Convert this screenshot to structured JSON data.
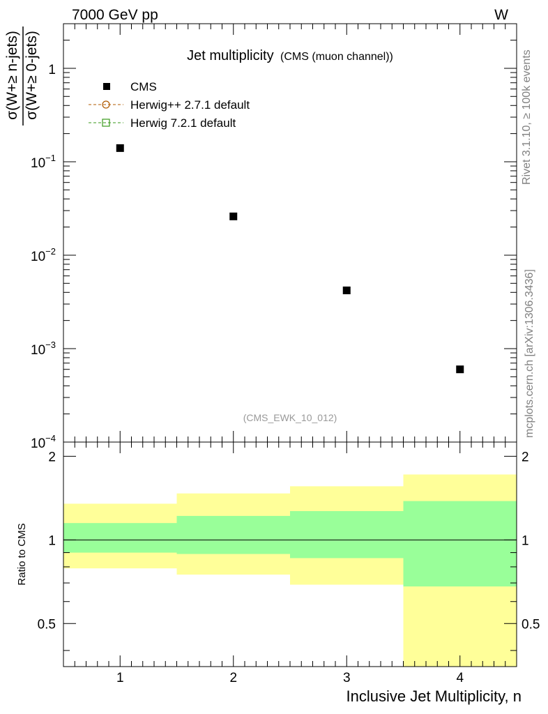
{
  "header": {
    "left": "7000 GeV pp",
    "right": "W"
  },
  "title": {
    "main": "Jet multiplicity",
    "sub": "(CMS (muon channel))"
  },
  "analysis_id": "(CMS_EWK_10_012)",
  "side_labels": {
    "rivet": "Rivet 3.1.10, ≥ 100k events",
    "mcplots": "mcplots.cern.ch [arXiv:1306.3436]"
  },
  "main_ylabel": {
    "numerator": "σ(W+≥ n-jets)",
    "denominator": "σ(W+≥ 0-jets)"
  },
  "legend": {
    "cms": "CMS",
    "herwigpp": "Herwig++ 2.7.1 default",
    "herwig7": "Herwig 7.2.1 default"
  },
  "colors": {
    "herwigpp": "#b05a00",
    "herwig7": "#3a9a1a",
    "band_stat": "#99ff99",
    "band_total": "#ffff99",
    "side_text": "#808080"
  },
  "chart_data": [
    {
      "type": "scatter",
      "panel": "main",
      "scale": "log",
      "ylim": [
        0.0001,
        3
      ],
      "xlim": [
        0.5,
        4.5
      ],
      "yticks": [
        {
          "value": 0.0001,
          "mant": "10",
          "exp": "−4"
        },
        {
          "value": 0.001,
          "mant": "10",
          "exp": "−3"
        },
        {
          "value": 0.01,
          "mant": "10",
          "exp": "−2"
        },
        {
          "value": 0.1,
          "mant": "10",
          "exp": "−1"
        },
        {
          "value": 1,
          "mant": "1",
          "exp": ""
        }
      ],
      "series": [
        {
          "name": "CMS",
          "x": [
            1,
            2,
            3,
            4
          ],
          "y": [
            0.14,
            0.026,
            0.0042,
            0.0006
          ]
        }
      ]
    },
    {
      "type": "area",
      "panel": "ratio",
      "ylabel": "Ratio to CMS",
      "xlabel": "Inclusive Jet Multiplicity, n",
      "xlim": [
        0.5,
        4.5
      ],
      "ylim": [
        0.35,
        2.25
      ],
      "xticks": [
        "1",
        "2",
        "3",
        "4"
      ],
      "yticks": [
        "0.5",
        "1",
        "2"
      ],
      "bins": [
        [
          0.5,
          1.5
        ],
        [
          1.5,
          2.5
        ],
        [
          2.5,
          3.5
        ],
        [
          3.5,
          4.5
        ]
      ],
      "stat_band": [
        [
          0.9,
          1.15
        ],
        [
          0.89,
          1.22
        ],
        [
          0.86,
          1.27
        ],
        [
          0.68,
          1.38
        ]
      ],
      "total_band": [
        [
          0.79,
          1.35
        ],
        [
          0.75,
          1.47
        ],
        [
          0.69,
          1.56
        ],
        [
          0.3,
          1.72
        ]
      ]
    }
  ]
}
